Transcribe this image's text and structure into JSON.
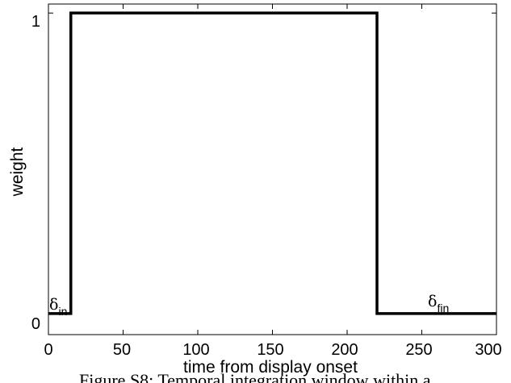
{
  "chart_data": {
    "type": "line",
    "title": "",
    "xlabel": "time from display onset",
    "ylabel": "weight",
    "xlim": [
      0,
      300
    ],
    "ylim": [
      -0.07,
      1.03
    ],
    "grid": false,
    "x_ticks": [
      0,
      50,
      100,
      150,
      200,
      250,
      300
    ],
    "x_tick_labels": [
      "0",
      "50",
      "100",
      "150",
      "200",
      "250",
      "300"
    ],
    "y_ticks": [
      0,
      1
    ],
    "y_tick_labels": [
      "0",
      "1"
    ],
    "series": [
      {
        "x": [
          0,
          15,
          15,
          220,
          220,
          300
        ],
        "y": [
          0,
          0,
          1,
          1,
          0,
          0
        ],
        "color": "#000000"
      }
    ],
    "annotations": [
      {
        "symbol": "δ",
        "subscript": "in",
        "x": 0,
        "y": 0.04
      },
      {
        "symbol": "δ",
        "subscript": "fin",
        "x": 250,
        "y": 0.04
      }
    ]
  },
  "caption_fragment": "Figure S8: Temporal integration window within a"
}
